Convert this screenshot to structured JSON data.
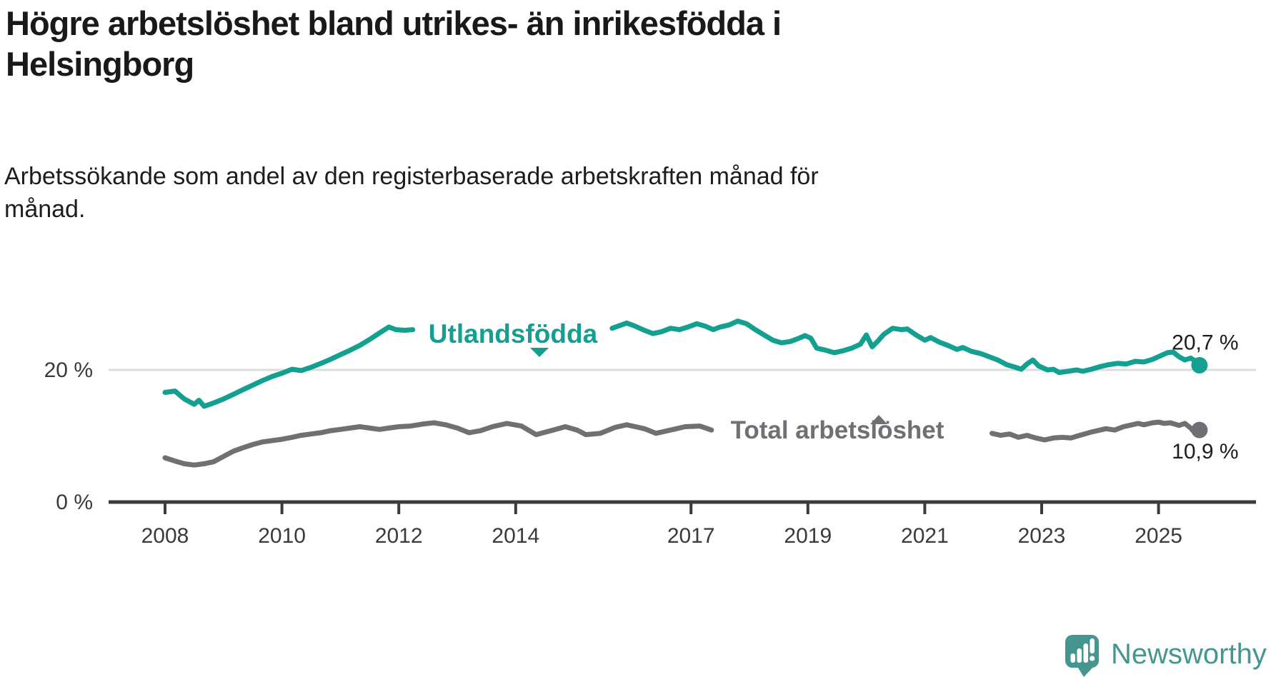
{
  "chart_data": {
    "type": "line",
    "title": "Högre arbetslöshet bland utrikes- än inrikesfödda i\nHelsingborg",
    "subtitle": "Arbetssökande som andel av den registerbaserade arbetskraften månad för\nmånad.",
    "unit": "%",
    "x_axis": {
      "min": 2008,
      "max": 2026,
      "grid": false
    },
    "y_axis": {
      "min": 0,
      "max": 29,
      "grid_at": 20
    },
    "x_ticks": [
      {
        "year": 2008,
        "label": "2008"
      },
      {
        "year": 2010,
        "label": "2010"
      },
      {
        "year": 2012,
        "label": "2012"
      },
      {
        "year": 2014,
        "label": "2014"
      },
      {
        "year": 2017,
        "label": "2017"
      },
      {
        "year": 2019,
        "label": "2019"
      },
      {
        "year": 2021,
        "label": "2021"
      },
      {
        "year": 2023,
        "label": "2023"
      },
      {
        "year": 2025,
        "label": "2025"
      }
    ],
    "y_ticks": [
      {
        "value": 0,
        "label": "0 %"
      },
      {
        "value": 20,
        "label": "20 %"
      }
    ],
    "series": [
      {
        "name": "Utlandsfödda",
        "color": "#14a090",
        "end_label": "20,7 %",
        "last_value": 20.7,
        "label_gap": [
          2012.3,
          2015.6
        ],
        "points": [
          [
            2008.0,
            16.6
          ],
          [
            2008.17,
            16.8
          ],
          [
            2008.33,
            15.6
          ],
          [
            2008.5,
            14.8
          ],
          [
            2008.58,
            15.4
          ],
          [
            2008.67,
            14.5
          ],
          [
            2008.83,
            15.0
          ],
          [
            2009.0,
            15.6
          ],
          [
            2009.17,
            16.3
          ],
          [
            2009.33,
            17.0
          ],
          [
            2009.5,
            17.7
          ],
          [
            2009.67,
            18.4
          ],
          [
            2009.83,
            19.0
          ],
          [
            2010.0,
            19.5
          ],
          [
            2010.17,
            20.1
          ],
          [
            2010.33,
            19.9
          ],
          [
            2010.5,
            20.4
          ],
          [
            2010.67,
            21.0
          ],
          [
            2010.83,
            21.6
          ],
          [
            2011.0,
            22.3
          ],
          [
            2011.17,
            23.0
          ],
          [
            2011.33,
            23.7
          ],
          [
            2011.5,
            24.6
          ],
          [
            2011.67,
            25.6
          ],
          [
            2011.83,
            26.5
          ],
          [
            2011.95,
            26.1
          ],
          [
            2012.1,
            26.0
          ],
          [
            2012.24,
            26.1
          ],
          [
            2012.5,
            25.9
          ],
          [
            2013.0,
            25.8
          ],
          [
            2013.5,
            25.9
          ],
          [
            2014.0,
            26.0
          ],
          [
            2014.5,
            25.9
          ],
          [
            2015.0,
            26.0
          ],
          [
            2015.5,
            26.2
          ],
          [
            2015.65,
            26.3
          ],
          [
            2015.9,
            27.1
          ],
          [
            2016.05,
            26.6
          ],
          [
            2016.2,
            26.0
          ],
          [
            2016.35,
            25.5
          ],
          [
            2016.5,
            25.8
          ],
          [
            2016.65,
            26.3
          ],
          [
            2016.8,
            26.1
          ],
          [
            2016.95,
            26.5
          ],
          [
            2017.1,
            27.0
          ],
          [
            2017.25,
            26.6
          ],
          [
            2017.38,
            26.1
          ],
          [
            2017.5,
            26.5
          ],
          [
            2017.65,
            26.8
          ],
          [
            2017.8,
            27.4
          ],
          [
            2017.95,
            27.0
          ],
          [
            2018.1,
            26.1
          ],
          [
            2018.25,
            25.3
          ],
          [
            2018.4,
            24.5
          ],
          [
            2018.55,
            24.1
          ],
          [
            2018.7,
            24.3
          ],
          [
            2018.85,
            24.8
          ],
          [
            2018.95,
            25.2
          ],
          [
            2019.05,
            24.8
          ],
          [
            2019.15,
            23.3
          ],
          [
            2019.3,
            23.0
          ],
          [
            2019.45,
            22.6
          ],
          [
            2019.6,
            22.9
          ],
          [
            2019.75,
            23.3
          ],
          [
            2019.9,
            23.9
          ],
          [
            2020.0,
            25.3
          ],
          [
            2020.1,
            23.5
          ],
          [
            2020.2,
            24.4
          ],
          [
            2020.3,
            25.4
          ],
          [
            2020.45,
            26.3
          ],
          [
            2020.6,
            26.1
          ],
          [
            2020.7,
            26.2
          ],
          [
            2020.85,
            25.3
          ],
          [
            2021.0,
            24.5
          ],
          [
            2021.1,
            24.9
          ],
          [
            2021.25,
            24.2
          ],
          [
            2021.4,
            23.7
          ],
          [
            2021.55,
            23.1
          ],
          [
            2021.65,
            23.4
          ],
          [
            2021.8,
            22.8
          ],
          [
            2021.95,
            22.5
          ],
          [
            2022.1,
            22.0
          ],
          [
            2022.25,
            21.5
          ],
          [
            2022.4,
            20.8
          ],
          [
            2022.55,
            20.4
          ],
          [
            2022.65,
            20.1
          ],
          [
            2022.75,
            20.9
          ],
          [
            2022.85,
            21.5
          ],
          [
            2022.95,
            20.6
          ],
          [
            2023.1,
            20.0
          ],
          [
            2023.2,
            20.1
          ],
          [
            2023.3,
            19.6
          ],
          [
            2023.45,
            19.8
          ],
          [
            2023.6,
            20.0
          ],
          [
            2023.7,
            19.8
          ],
          [
            2023.85,
            20.1
          ],
          [
            2024.0,
            20.5
          ],
          [
            2024.15,
            20.8
          ],
          [
            2024.3,
            21.0
          ],
          [
            2024.45,
            20.9
          ],
          [
            2024.6,
            21.3
          ],
          [
            2024.75,
            21.2
          ],
          [
            2024.9,
            21.6
          ],
          [
            2025.05,
            22.2
          ],
          [
            2025.15,
            22.6
          ],
          [
            2025.25,
            22.7
          ],
          [
            2025.35,
            22.0
          ],
          [
            2025.45,
            21.5
          ],
          [
            2025.55,
            21.8
          ],
          [
            2025.62,
            21.4
          ],
          [
            2025.7,
            20.7
          ]
        ]
      },
      {
        "name": "Total arbetslöshet",
        "color": "#6f6f74",
        "end_label": "10,9 %",
        "last_value": 10.9,
        "label_gap": [
          2017.45,
          2022.1
        ],
        "points": [
          [
            2008.0,
            6.7
          ],
          [
            2008.17,
            6.2
          ],
          [
            2008.33,
            5.8
          ],
          [
            2008.5,
            5.6
          ],
          [
            2008.67,
            5.8
          ],
          [
            2008.83,
            6.1
          ],
          [
            2009.0,
            6.9
          ],
          [
            2009.17,
            7.7
          ],
          [
            2009.33,
            8.2
          ],
          [
            2009.5,
            8.7
          ],
          [
            2009.67,
            9.1
          ],
          [
            2009.83,
            9.3
          ],
          [
            2010.0,
            9.5
          ],
          [
            2010.17,
            9.8
          ],
          [
            2010.33,
            10.1
          ],
          [
            2010.5,
            10.3
          ],
          [
            2010.67,
            10.5
          ],
          [
            2010.83,
            10.8
          ],
          [
            2011.0,
            11.0
          ],
          [
            2011.17,
            11.2
          ],
          [
            2011.33,
            11.4
          ],
          [
            2011.5,
            11.2
          ],
          [
            2011.67,
            11.0
          ],
          [
            2011.83,
            11.2
          ],
          [
            2012.0,
            11.4
          ],
          [
            2012.2,
            11.5
          ],
          [
            2012.4,
            11.8
          ],
          [
            2012.6,
            12.0
          ],
          [
            2012.8,
            11.7
          ],
          [
            2013.0,
            11.2
          ],
          [
            2013.2,
            10.5
          ],
          [
            2013.4,
            10.8
          ],
          [
            2013.6,
            11.4
          ],
          [
            2013.85,
            11.9
          ],
          [
            2014.1,
            11.5
          ],
          [
            2014.35,
            10.2
          ],
          [
            2014.6,
            10.8
          ],
          [
            2014.85,
            11.4
          ],
          [
            2015.05,
            10.9
          ],
          [
            2015.2,
            10.2
          ],
          [
            2015.45,
            10.4
          ],
          [
            2015.7,
            11.3
          ],
          [
            2015.9,
            11.7
          ],
          [
            2016.2,
            11.1
          ],
          [
            2016.4,
            10.4
          ],
          [
            2016.65,
            10.9
          ],
          [
            2016.9,
            11.4
          ],
          [
            2017.15,
            11.5
          ],
          [
            2017.35,
            10.9
          ],
          [
            2017.6,
            10.7
          ],
          [
            2018.0,
            10.4
          ],
          [
            2018.5,
            10.2
          ],
          [
            2019.0,
            10.1
          ],
          [
            2019.5,
            10.3
          ],
          [
            2020.0,
            10.6
          ],
          [
            2020.4,
            11.3
          ],
          [
            2020.7,
            11.5
          ],
          [
            2021.0,
            11.2
          ],
          [
            2021.4,
            10.9
          ],
          [
            2021.8,
            10.6
          ],
          [
            2022.15,
            10.4
          ],
          [
            2022.3,
            10.1
          ],
          [
            2022.45,
            10.3
          ],
          [
            2022.6,
            9.8
          ],
          [
            2022.75,
            10.1
          ],
          [
            2022.9,
            9.7
          ],
          [
            2023.05,
            9.4
          ],
          [
            2023.2,
            9.7
          ],
          [
            2023.35,
            9.8
          ],
          [
            2023.5,
            9.7
          ],
          [
            2023.65,
            10.1
          ],
          [
            2023.85,
            10.6
          ],
          [
            2024.0,
            10.9
          ],
          [
            2024.1,
            11.1
          ],
          [
            2024.25,
            10.9
          ],
          [
            2024.4,
            11.4
          ],
          [
            2024.55,
            11.7
          ],
          [
            2024.65,
            11.9
          ],
          [
            2024.75,
            11.7
          ],
          [
            2024.9,
            12.0
          ],
          [
            2025.0,
            12.1
          ],
          [
            2025.1,
            11.9
          ],
          [
            2025.2,
            12.0
          ],
          [
            2025.35,
            11.6
          ],
          [
            2025.45,
            11.9
          ],
          [
            2025.55,
            11.2
          ],
          [
            2025.62,
            10.5
          ],
          [
            2025.7,
            10.9
          ]
        ]
      }
    ]
  },
  "branding": {
    "text": "Newsworthy",
    "color": "#459690"
  }
}
